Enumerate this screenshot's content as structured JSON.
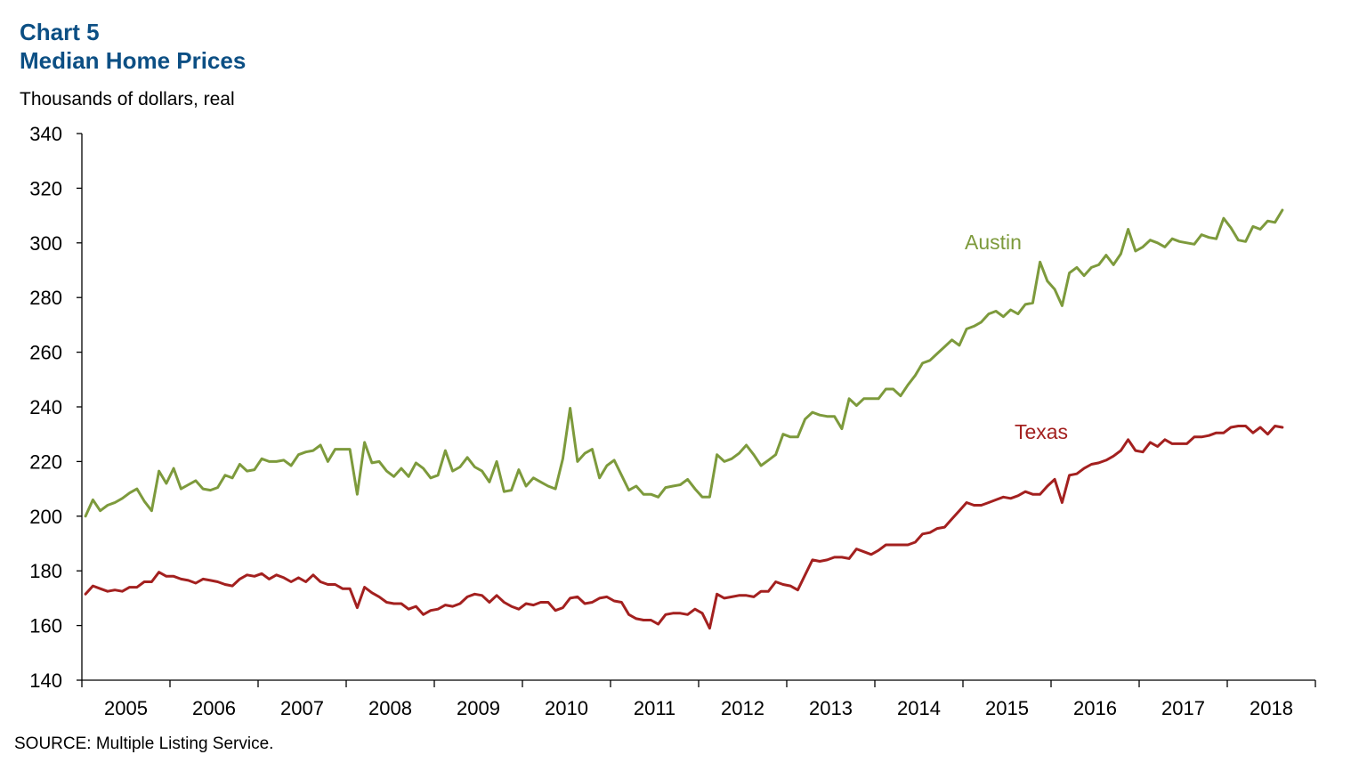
{
  "header": {
    "chart_number": "Chart 5",
    "title": "Median Home Prices"
  },
  "units": "Thousands of dollars, real",
  "source": "SOURCE: Multiple Listing Service.",
  "colors": {
    "title": "#0c4f84",
    "austin": "#7d9a3c",
    "texas": "#a3201f",
    "axis": "#000000"
  },
  "chart_data": {
    "type": "line",
    "title": "Median Home Prices",
    "ylabel": "Thousands of dollars, real",
    "xlabel": "",
    "ylim": [
      140,
      340
    ],
    "y_ticks": [
      "140",
      "160",
      "180",
      "200",
      "220",
      "240",
      "260",
      "280",
      "300",
      "320",
      "340"
    ],
    "x_start": "2005-01",
    "x_end": "2018-12",
    "x_tick_labels": [
      "2005",
      "2006",
      "2007",
      "2008",
      "2009",
      "2010",
      "2011",
      "2012",
      "2013",
      "2014",
      "2015",
      "2016",
      "2017",
      "2018"
    ],
    "grid": false,
    "legend": "inline labels",
    "series": [
      {
        "name": "Austin",
        "values": [
          200,
          206,
          202,
          204,
          205,
          206.5,
          208.5,
          210,
          205.5,
          202,
          216.5,
          212,
          217.5,
          210,
          211.5,
          213,
          210,
          209.5,
          210.5,
          215,
          214,
          219,
          216.5,
          217,
          221,
          220,
          220,
          220.5,
          218.5,
          222.5,
          223.5,
          224,
          226,
          220,
          224.5,
          224.5,
          224.5,
          208,
          227,
          219.5,
          220,
          216.5,
          214.5,
          217.5,
          214.5,
          219.5,
          217.5,
          214,
          215,
          224,
          216.5,
          218,
          221.5,
          218,
          216.5,
          212.5,
          220,
          209,
          209.5,
          217,
          211,
          214,
          212.5,
          211,
          210,
          221,
          239.5,
          220,
          223,
          224.5,
          214,
          218.5,
          220.5,
          215,
          209.5,
          211,
          208,
          208,
          207,
          210.5,
          211,
          211.5,
          213.5,
          210,
          207,
          207,
          222.5,
          220,
          221,
          223,
          226,
          222.5,
          218.5,
          220.5,
          222.5,
          230,
          229,
          229,
          235.5,
          238,
          237,
          236.5,
          236.5,
          232,
          243,
          240.5,
          243,
          243,
          243,
          246.5,
          246.5,
          244,
          248,
          251.5,
          256,
          257,
          259.5,
          262,
          264.5,
          262.5,
          268.5,
          269.5,
          271,
          274,
          275,
          273,
          275.5,
          274,
          277.5,
          278,
          293,
          286,
          283,
          277,
          289,
          291,
          288,
          291,
          292,
          295.5,
          292,
          296,
          305,
          297,
          298.5,
          301,
          300,
          298.5,
          301.5,
          300.5,
          300,
          299.5,
          303,
          302,
          301.5,
          309,
          305.5,
          301,
          300.5,
          306,
          305,
          308,
          307.5,
          312
        ]
      },
      {
        "name": "Texas",
        "values": [
          171.5,
          174.5,
          173.5,
          172.5,
          173,
          172.5,
          174,
          174,
          176,
          176,
          179.5,
          178,
          178,
          177,
          176.5,
          175.5,
          177,
          176.5,
          176,
          175,
          174.5,
          177,
          178.5,
          178,
          179,
          177,
          178.5,
          177.5,
          176,
          177.5,
          176,
          178.5,
          176,
          175,
          175,
          173.5,
          173.5,
          166.5,
          174,
          172,
          170.5,
          168.5,
          168,
          168,
          166,
          167,
          164,
          165.5,
          166,
          167.5,
          167,
          168,
          170.5,
          171.5,
          171,
          168.5,
          171,
          168.5,
          167,
          166,
          168,
          167.5,
          168.5,
          168.5,
          165.5,
          166.5,
          170,
          170.5,
          168,
          168.5,
          170,
          170.5,
          169,
          168.5,
          164,
          162.5,
          162,
          162,
          160.5,
          164,
          164.5,
          164.5,
          164,
          166,
          164.5,
          159,
          171.5,
          170,
          170.5,
          171,
          171,
          170.5,
          172.5,
          172.5,
          176,
          175,
          174.5,
          173,
          178.5,
          184,
          183.5,
          184,
          185,
          185,
          184.5,
          188,
          187,
          186,
          187.5,
          189.5,
          189.5,
          189.5,
          189.5,
          190.5,
          193.5,
          194,
          195.5,
          196,
          199,
          202,
          205,
          204,
          204,
          205,
          206,
          207,
          206.5,
          207.5,
          209,
          208,
          208,
          211,
          213.5,
          205,
          215,
          215.5,
          217.5,
          219,
          219.5,
          220.5,
          222,
          224,
          228,
          224,
          223.5,
          227,
          225.5,
          228,
          226.5,
          226.5,
          226.5,
          229,
          229,
          229.5,
          230.5,
          230.5,
          232.5,
          233,
          233,
          230.5,
          232.5,
          230,
          233,
          232.5
        ]
      }
    ]
  }
}
